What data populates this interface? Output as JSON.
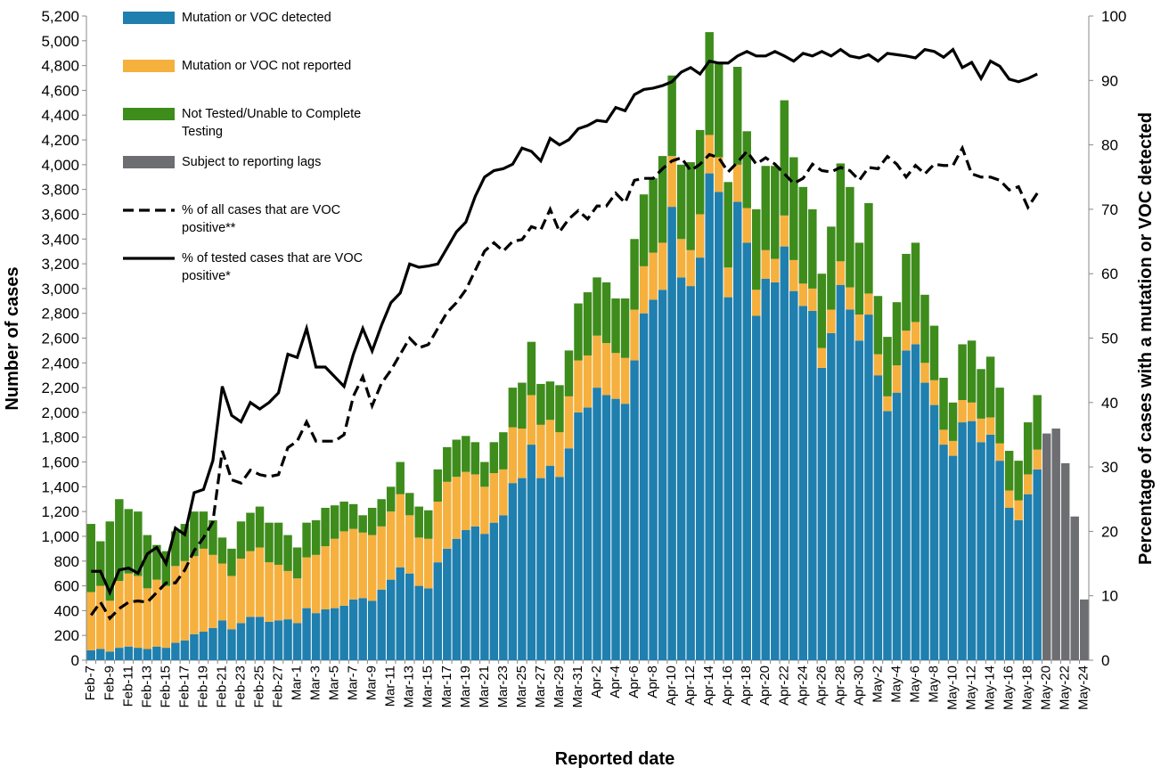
{
  "chart_data": {
    "type": "bar",
    "x_label": "Reported date",
    "y_label": "Number of cases",
    "y2_label": "Percentage of cases with a mutation or VOC detected",
    "categories": [
      "Feb-7",
      null,
      "Feb-9",
      null,
      "Feb-11",
      null,
      "Feb-13",
      null,
      "Feb-15",
      null,
      "Feb-17",
      null,
      "Feb-19",
      null,
      "Feb-21",
      null,
      "Feb-23",
      null,
      "Feb-25",
      null,
      "Feb-27",
      null,
      "Mar-1",
      null,
      "Mar-3",
      null,
      "Mar-5",
      null,
      "Mar-7",
      null,
      "Mar-9",
      null,
      "Mar-11",
      null,
      "Mar-13",
      null,
      "Mar-15",
      null,
      "Mar-17",
      null,
      "Mar-19",
      null,
      "Mar-21",
      null,
      "Mar-23",
      null,
      "Mar-25",
      null,
      "Mar-27",
      null,
      "Mar-29",
      null,
      "Mar-31",
      null,
      "Apr-2",
      null,
      "Apr-4",
      null,
      "Apr-6",
      null,
      "Apr-8",
      null,
      "Apr-10",
      null,
      "Apr-12",
      null,
      "Apr-14",
      null,
      "Apr-16",
      null,
      "Apr-18",
      null,
      "Apr-20",
      null,
      "Apr-22",
      null,
      "Apr-24",
      null,
      "Apr-26",
      null,
      "Apr-28",
      null,
      "Apr-30",
      null,
      "May-2",
      null,
      "May-4",
      null,
      "May-6",
      null,
      "May-8",
      null,
      "May-10",
      null,
      "May-12",
      null,
      "May-14",
      null,
      "May-16",
      null,
      "May-18",
      null,
      "May-20",
      null,
      "May-22",
      null,
      "May-24"
    ],
    "series": [
      {
        "name": "Mutation or VOC detected",
        "type": "bar",
        "color": "#1f7fae",
        "values": [
          80,
          90,
          70,
          100,
          110,
          100,
          90,
          110,
          100,
          140,
          160,
          210,
          230,
          260,
          320,
          250,
          300,
          350,
          350,
          310,
          320,
          330,
          300,
          420,
          380,
          410,
          420,
          440,
          490,
          500,
          480,
          570,
          650,
          750,
          700,
          600,
          580,
          790,
          900,
          980,
          1050,
          1080,
          1020,
          1110,
          1170,
          1430,
          1470,
          1740,
          1470,
          1570,
          1480,
          1710,
          2000,
          2040,
          2200,
          2140,
          2110,
          2070,
          2420,
          2800,
          2910,
          2990,
          3660,
          3090,
          3020,
          3250,
          3930,
          3780,
          2930,
          3700,
          3370,
          2780,
          3080,
          3050,
          3340,
          2980,
          2860,
          2820,
          2360,
          2640,
          3030,
          2830,
          2580,
          2790,
          2300,
          2010,
          2160,
          2500,
          2550,
          2240,
          2060,
          1740,
          1650,
          1920,
          1930,
          1760,
          1820,
          1610,
          1230,
          1130,
          1340,
          1540,
          null,
          null,
          null,
          null,
          null
        ]
      },
      {
        "name": "Mutation or VOC not reported",
        "type": "bar",
        "color": "#f5b03e",
        "values": [
          470,
          510,
          410,
          540,
          590,
          580,
          490,
          540,
          500,
          620,
          640,
          630,
          670,
          590,
          460,
          430,
          520,
          530,
          560,
          480,
          450,
          390,
          360,
          410,
          470,
          510,
          560,
          600,
          570,
          530,
          530,
          510,
          550,
          590,
          470,
          390,
          400,
          490,
          540,
          500,
          470,
          420,
          380,
          400,
          370,
          450,
          400,
          400,
          430,
          370,
          360,
          420,
          420,
          420,
          420,
          420,
          370,
          370,
          410,
          380,
          380,
          380,
          410,
          310,
          290,
          350,
          310,
          280,
          240,
          300,
          280,
          210,
          230,
          190,
          250,
          250,
          180,
          180,
          160,
          190,
          190,
          180,
          210,
          170,
          170,
          120,
          220,
          160,
          180,
          160,
          200,
          120,
          120,
          180,
          150,
          190,
          140,
          140,
          140,
          160,
          160,
          160,
          null,
          null,
          null,
          null,
          null
        ]
      },
      {
        "name": "Not Tested/Unable to Complete Testing",
        "type": "bar",
        "color": "#3e8c1c",
        "values": [
          550,
          360,
          640,
          660,
          520,
          520,
          430,
          280,
          280,
          280,
          300,
          360,
          300,
          280,
          210,
          220,
          300,
          310,
          330,
          320,
          340,
          290,
          250,
          280,
          280,
          310,
          270,
          240,
          200,
          140,
          220,
          220,
          200,
          260,
          180,
          250,
          230,
          260,
          280,
          300,
          290,
          260,
          200,
          250,
          300,
          320,
          370,
          430,
          330,
          310,
          380,
          370,
          460,
          510,
          470,
          490,
          440,
          480,
          570,
          580,
          600,
          700,
          650,
          600,
          710,
          680,
          830,
          760,
          690,
          790,
          620,
          650,
          680,
          750,
          930,
          830,
          780,
          640,
          600,
          670,
          790,
          810,
          580,
          730,
          470,
          480,
          510,
          620,
          640,
          550,
          440,
          420,
          310,
          450,
          500,
          400,
          490,
          450,
          320,
          320,
          420,
          440,
          null,
          null,
          null,
          null,
          null
        ]
      },
      {
        "name": "Subject to reporting lags",
        "type": "bar",
        "color": "#6d6e71",
        "values": [
          null,
          null,
          null,
          null,
          null,
          null,
          null,
          null,
          null,
          null,
          null,
          null,
          null,
          null,
          null,
          null,
          null,
          null,
          null,
          null,
          null,
          null,
          null,
          null,
          null,
          null,
          null,
          null,
          null,
          null,
          null,
          null,
          null,
          null,
          null,
          null,
          null,
          null,
          null,
          null,
          null,
          null,
          null,
          null,
          null,
          null,
          null,
          null,
          null,
          null,
          null,
          null,
          null,
          null,
          null,
          null,
          null,
          null,
          null,
          null,
          null,
          null,
          null,
          null,
          null,
          null,
          null,
          null,
          null,
          null,
          null,
          null,
          null,
          null,
          null,
          null,
          null,
          null,
          null,
          null,
          null,
          null,
          null,
          null,
          null,
          null,
          null,
          null,
          null,
          null,
          null,
          null,
          null,
          null,
          null,
          null,
          null,
          null,
          null,
          null,
          null,
          null,
          1830,
          1870,
          1590,
          1160,
          490
        ]
      },
      {
        "name": "% of all cases that are VOC positive**",
        "type": "line",
        "dashed": true,
        "axis": "y2",
        "color": "#000000",
        "values": [
          7,
          9,
          6.5,
          8,
          9,
          9.2,
          9,
          10.5,
          12,
          12,
          14,
          17,
          19,
          21.5,
          32.5,
          28,
          27.5,
          29.5,
          28.8,
          28.5,
          28.8,
          33,
          34,
          37,
          34,
          34,
          34,
          35,
          41,
          44,
          39.5,
          43,
          45,
          47.5,
          50,
          48.5,
          49,
          51.5,
          54,
          55.5,
          57.5,
          60.5,
          63.5,
          64.8,
          63.5,
          65,
          65.3,
          67.3,
          66.8,
          70,
          66.5,
          68.5,
          69.8,
          68.5,
          70.5,
          70.5,
          72.5,
          71,
          74.5,
          74.8,
          74.8,
          76.3,
          77.5,
          78,
          76,
          77,
          78.5,
          78,
          75.8,
          77.3,
          79,
          77,
          78,
          77,
          75.5,
          74,
          74.8,
          77,
          76,
          75.8,
          76.5,
          76,
          74.5,
          76.5,
          76.3,
          78.2,
          77,
          75,
          76.8,
          75.5,
          77,
          76.8,
          76.8,
          79.5,
          75.5,
          75,
          75,
          74.5,
          73,
          73.5,
          70.3,
          72.5,
          null,
          null,
          null,
          null,
          null
        ]
      },
      {
        "name": "% of tested cases that are VOC positive*",
        "type": "line",
        "dashed": false,
        "axis": "y2",
        "color": "#000000",
        "values": [
          13.8,
          13.8,
          10.5,
          14,
          14.3,
          13.5,
          16.5,
          17.5,
          15,
          20.5,
          19.5,
          26,
          26.5,
          31,
          42.5,
          38,
          37,
          40,
          39,
          40,
          41.5,
          47.5,
          47,
          51.5,
          45.5,
          45.5,
          44,
          42.5,
          47.5,
          51.5,
          48,
          52,
          55.5,
          57,
          61.5,
          61,
          61.2,
          61.5,
          64,
          66.5,
          68,
          72,
          75,
          76,
          76.3,
          77,
          79.5,
          79,
          77.5,
          81,
          80,
          80.8,
          82.5,
          83,
          83.8,
          83.6,
          85.8,
          85.3,
          87.8,
          88.6,
          88.8,
          89.2,
          89.8,
          91.3,
          92,
          91,
          93,
          92.7,
          92.7,
          93.8,
          94.5,
          93.8,
          93.8,
          94.5,
          93.8,
          93,
          94.2,
          93.8,
          94.5,
          93.8,
          94.8,
          93.8,
          93.5,
          94,
          93,
          94.2,
          94,
          93.8,
          93.5,
          94.8,
          94.5,
          93.6,
          94.8,
          92,
          92.8,
          90.3,
          93,
          92.2,
          90.2,
          89.8,
          90.3,
          91,
          null,
          null,
          null,
          null,
          null
        ]
      }
    ],
    "ylim": [
      0,
      5200
    ],
    "yticks": [
      0,
      200,
      400,
      600,
      800,
      {
        "value": 1000,
        "label": "1,000"
      },
      {
        "value": 1200,
        "label": "1,200"
      },
      {
        "value": 1400,
        "label": "1,400"
      },
      {
        "value": 1600,
        "label": "1,600"
      },
      {
        "value": 1800,
        "label": "1,800"
      },
      {
        "value": 2000,
        "label": "2,000"
      },
      {
        "value": 2200,
        "label": "2,200"
      },
      {
        "value": 2400,
        "label": "2,400"
      },
      {
        "value": 2600,
        "label": "2,600"
      },
      {
        "value": 2800,
        "label": "2,800"
      },
      {
        "value": 3000,
        "label": "3,000"
      },
      {
        "value": 3200,
        "label": "3,200"
      },
      {
        "value": 3400,
        "label": "3,400"
      },
      {
        "value": 3600,
        "label": "3,600"
      },
      {
        "value": 3800,
        "label": "3,800"
      },
      {
        "value": 4000,
        "label": "4,000"
      },
      {
        "value": 4200,
        "label": "4,200"
      },
      {
        "value": 4400,
        "label": "4,400"
      },
      {
        "value": 4600,
        "label": "4,600"
      },
      {
        "value": 4800,
        "label": "4,800"
      },
      {
        "value": 5000,
        "label": "5,000"
      },
      {
        "value": 5200,
        "label": "5,200"
      }
    ],
    "y2lim": [
      0,
      100
    ],
    "y2ticks": [
      0,
      10,
      20,
      30,
      40,
      50,
      60,
      70,
      80,
      90,
      100
    ],
    "grid": false,
    "legend": "upper left"
  }
}
